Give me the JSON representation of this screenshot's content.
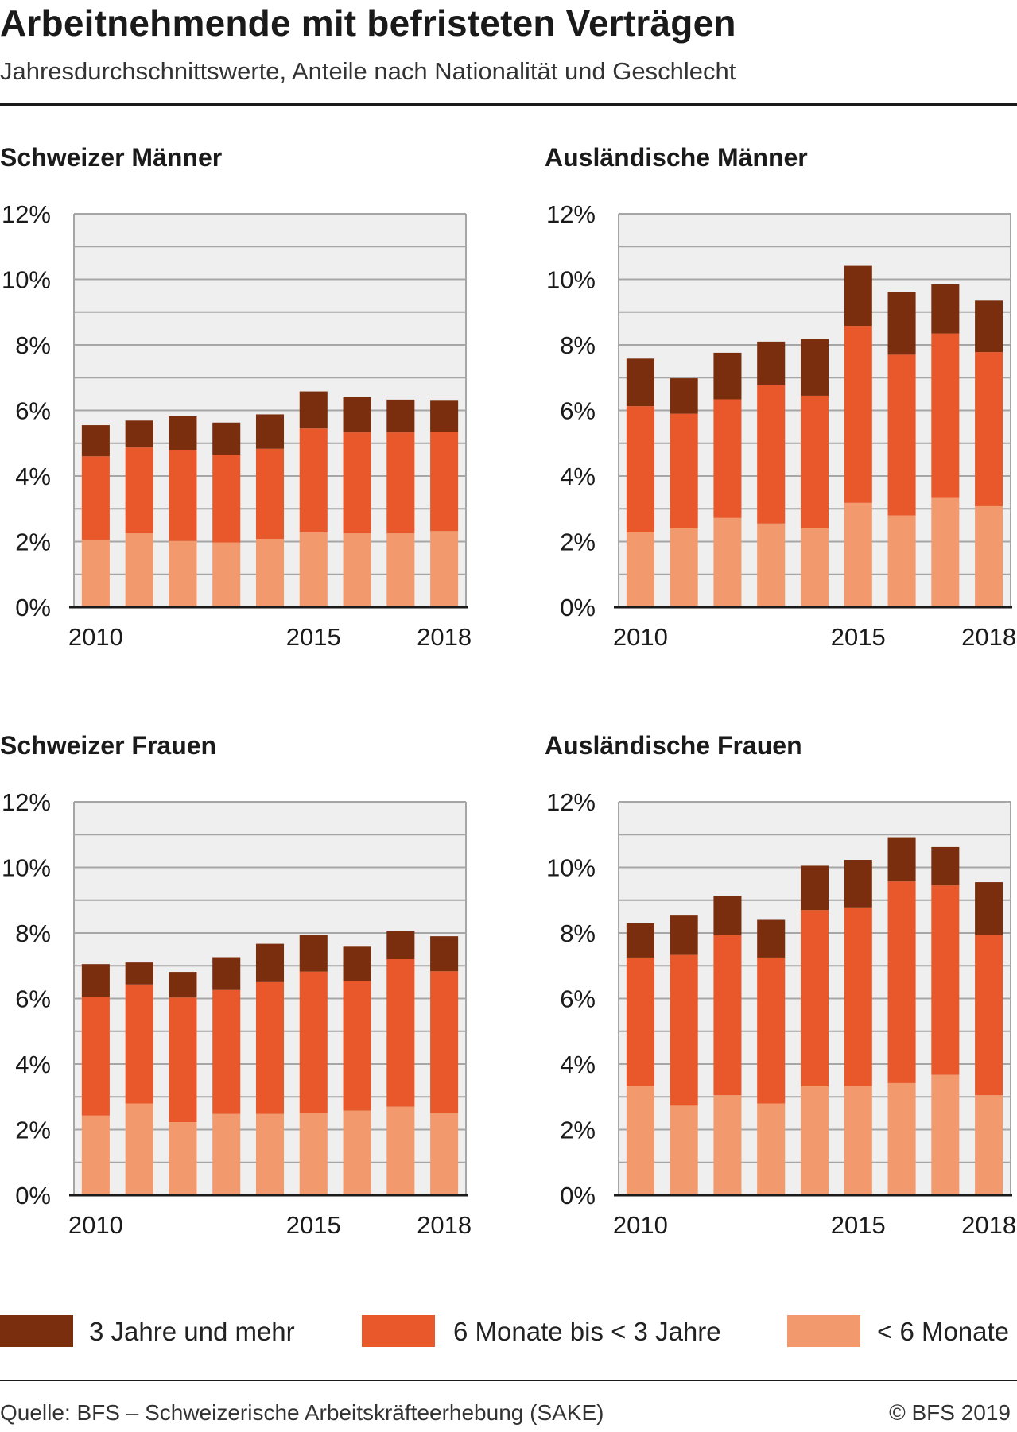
{
  "header": {
    "title": "Arbeitnehmende mit befristeten Verträgen",
    "subtitle": "Jahresdurchschnittswerte, Anteile nach Nationalität und Geschlecht"
  },
  "legend": [
    {
      "label": "3 Jahre und mehr",
      "color": "#7a2e0e"
    },
    {
      "label": "6 Monate bis < 3 Jahre",
      "color": "#e8582a"
    },
    {
      "label": "< 6 Monate",
      "color": "#f29a6e"
    }
  ],
  "footer": {
    "source": "Quelle: BFS – Schweizerische Arbeitskräfteerhebung (SAKE)",
    "copyright": "© BFS 2019"
  },
  "colors": {
    "plot_background": "#efefef",
    "grid": "#a6a6a6",
    "axis": "#1a1a1a"
  },
  "chart_data": [
    {
      "type": "bar",
      "stacked": true,
      "title": "Schweizer Männer",
      "categories": [
        "2010",
        "2011",
        "2012",
        "2013",
        "2014",
        "2015",
        "2016",
        "2017",
        "2018"
      ],
      "x_tick_labels": [
        "2010",
        "",
        "",
        "",
        "",
        "2015",
        "",
        "",
        "2018"
      ],
      "y_ticks": [
        "0%",
        "2%",
        "4%",
        "6%",
        "8%",
        "10%",
        "12%"
      ],
      "ylim": [
        0,
        12
      ],
      "grid": true,
      "series": [
        {
          "name": "< 6 Monate",
          "values": [
            2.05,
            2.25,
            2.02,
            1.97,
            2.08,
            2.3,
            2.25,
            2.25,
            2.32
          ]
        },
        {
          "name": "6 Monate bis < 3 Jahre",
          "values": [
            2.55,
            2.62,
            2.78,
            2.68,
            2.75,
            3.15,
            3.08,
            3.08,
            3.03
          ]
        },
        {
          "name": "3 Jahre und mehr",
          "values": [
            0.95,
            0.82,
            1.02,
            0.98,
            1.05,
            1.13,
            1.07,
            1.0,
            0.97
          ]
        }
      ]
    },
    {
      "type": "bar",
      "stacked": true,
      "title": "Ausländische Männer",
      "categories": [
        "2010",
        "2011",
        "2012",
        "2013",
        "2014",
        "2015",
        "2016",
        "2017",
        "2018"
      ],
      "x_tick_labels": [
        "2010",
        "",
        "",
        "",
        "",
        "2015",
        "",
        "",
        "2018"
      ],
      "y_ticks": [
        "0%",
        "2%",
        "4%",
        "6%",
        "8%",
        "10%",
        "12%"
      ],
      "ylim": [
        0,
        12
      ],
      "grid": true,
      "series": [
        {
          "name": "< 6 Monate",
          "values": [
            2.28,
            2.4,
            2.72,
            2.55,
            2.4,
            3.18,
            2.8,
            3.33,
            3.08
          ]
        },
        {
          "name": "6 Monate bis < 3 Jahre",
          "values": [
            3.85,
            3.5,
            3.62,
            4.22,
            4.05,
            5.4,
            4.9,
            5.02,
            4.7
          ]
        },
        {
          "name": "3 Jahre und mehr",
          "values": [
            1.45,
            1.08,
            1.42,
            1.33,
            1.73,
            1.83,
            1.92,
            1.5,
            1.57
          ]
        }
      ]
    },
    {
      "type": "bar",
      "stacked": true,
      "title": "Schweizer Frauen",
      "categories": [
        "2010",
        "2011",
        "2012",
        "2013",
        "2014",
        "2015",
        "2016",
        "2017",
        "2018"
      ],
      "x_tick_labels": [
        "2010",
        "",
        "",
        "",
        "",
        "2015",
        "",
        "",
        "2018"
      ],
      "y_ticks": [
        "0%",
        "2%",
        "4%",
        "6%",
        "8%",
        "10%",
        "12%"
      ],
      "ylim": [
        0,
        12
      ],
      "grid": true,
      "series": [
        {
          "name": "< 6 Monate",
          "values": [
            2.43,
            2.8,
            2.23,
            2.48,
            2.48,
            2.52,
            2.58,
            2.7,
            2.5
          ]
        },
        {
          "name": "6 Monate bis < 3 Jahre",
          "values": [
            3.62,
            3.63,
            3.8,
            3.78,
            4.02,
            4.3,
            3.95,
            4.5,
            4.33
          ]
        },
        {
          "name": "3 Jahre und mehr",
          "values": [
            1.0,
            0.67,
            0.78,
            1.0,
            1.17,
            1.13,
            1.05,
            0.85,
            1.07
          ]
        }
      ]
    },
    {
      "type": "bar",
      "stacked": true,
      "title": "Ausländische Frauen",
      "categories": [
        "2010",
        "2011",
        "2012",
        "2013",
        "2014",
        "2015",
        "2016",
        "2017",
        "2018"
      ],
      "x_tick_labels": [
        "2010",
        "",
        "",
        "",
        "",
        "2015",
        "",
        "",
        "2018"
      ],
      "y_ticks": [
        "0%",
        "2%",
        "4%",
        "6%",
        "8%",
        "10%",
        "12%"
      ],
      "ylim": [
        0,
        12
      ],
      "grid": true,
      "series": [
        {
          "name": "< 6 Monate",
          "values": [
            3.33,
            2.73,
            3.05,
            2.8,
            3.32,
            3.33,
            3.42,
            3.67,
            3.05
          ]
        },
        {
          "name": "6 Monate bis < 3 Jahre",
          "values": [
            3.92,
            4.6,
            4.88,
            4.45,
            5.38,
            5.45,
            6.15,
            5.78,
            4.9
          ]
        },
        {
          "name": "3 Jahre und mehr",
          "values": [
            1.05,
            1.2,
            1.2,
            1.15,
            1.35,
            1.45,
            1.35,
            1.17,
            1.6
          ]
        }
      ]
    }
  ]
}
